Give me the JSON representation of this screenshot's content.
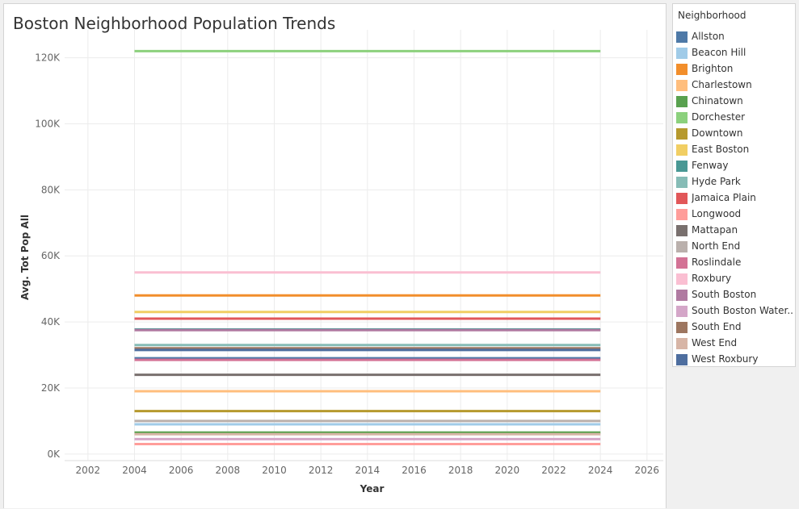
{
  "chart_data": {
    "type": "line",
    "title": "Boston Neighborhood Population Trends",
    "xlabel": "Year",
    "ylabel": "Avg. Tot Pop All",
    "xlim": [
      2001,
      2026.7
    ],
    "ylim": [
      -2000,
      126000
    ],
    "x_ticks": [
      2002,
      2004,
      2006,
      2008,
      2010,
      2012,
      2014,
      2016,
      2018,
      2020,
      2022,
      2024,
      2026
    ],
    "y_ticks": [
      0,
      20000,
      40000,
      60000,
      80000,
      100000,
      120000
    ],
    "y_tick_labels": [
      "0K",
      "20K",
      "40K",
      "60K",
      "80K",
      "100K",
      "120K"
    ],
    "grid": true,
    "legend_title": "Neighborhood",
    "legend_placement": "right",
    "x": [
      2004,
      2024
    ],
    "series": [
      {
        "name": "Allston",
        "color": "#4e79a7",
        "values": [
          29000,
          29000
        ]
      },
      {
        "name": "Beacon Hill",
        "color": "#a0cbe8",
        "values": [
          9000,
          9000
        ]
      },
      {
        "name": "Brighton",
        "color": "#f28e2b",
        "values": [
          48000,
          48000
        ]
      },
      {
        "name": "Charlestown",
        "color": "#ffbe7d",
        "values": [
          19000,
          19000
        ]
      },
      {
        "name": "Chinatown",
        "color": "#59a14f",
        "values": [
          6500,
          6500
        ]
      },
      {
        "name": "Dorchester",
        "color": "#8cd17d",
        "values": [
          122000,
          122000
        ]
      },
      {
        "name": "Downtown",
        "color": "#b6992d",
        "values": [
          13000,
          13000
        ]
      },
      {
        "name": "East Boston",
        "color": "#f1ce63",
        "values": [
          43000,
          43000
        ]
      },
      {
        "name": "Fenway",
        "color": "#499894",
        "values": [
          37700,
          37700
        ]
      },
      {
        "name": "Hyde Park",
        "color": "#86bcb6",
        "values": [
          33000,
          33000
        ]
      },
      {
        "name": "Jamaica Plain",
        "color": "#e15759",
        "values": [
          41000,
          41000
        ]
      },
      {
        "name": "Longwood",
        "color": "#ff9d9a",
        "values": [
          3000,
          3000
        ]
      },
      {
        "name": "Mattapan",
        "color": "#79706e",
        "values": [
          24000,
          24000
        ]
      },
      {
        "name": "North End",
        "color": "#bab0ac",
        "values": [
          10000,
          10000
        ]
      },
      {
        "name": "Roslindale",
        "color": "#d37295",
        "values": [
          28500,
          28500
        ]
      },
      {
        "name": "Roxbury",
        "color": "#fabfd2",
        "values": [
          55000,
          55000
        ]
      },
      {
        "name": "South Boston",
        "color": "#b07aa1",
        "values": [
          37500,
          37500
        ]
      },
      {
        "name": "South Boston Water..",
        "color": "#d4a6c8",
        "values": [
          4500,
          4500
        ]
      },
      {
        "name": "South End",
        "color": "#9d7660",
        "values": [
          32000,
          32000
        ]
      },
      {
        "name": "West End",
        "color": "#d7b5a6",
        "values": [
          6000,
          6000
        ]
      },
      {
        "name": "West Roxbury",
        "color": "#4e6e9f",
        "values": [
          31500,
          31500
        ]
      }
    ]
  }
}
